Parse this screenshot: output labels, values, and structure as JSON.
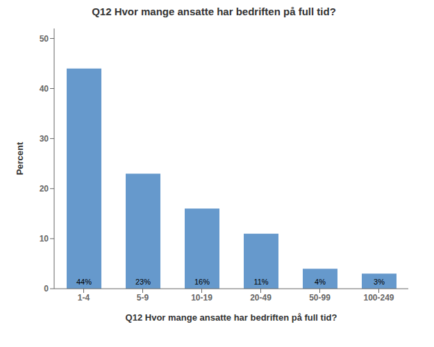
{
  "chart_data": {
    "type": "bar",
    "title": "Q12 Hvor mange ansatte har bedriften på full tid?",
    "xlabel": "Q12 Hvor mange ansatte har bedriften på full tid?",
    "ylabel": "Percent",
    "categories": [
      "1-4",
      "5-9",
      "10-19",
      "20-49",
      "50-99",
      "100-249"
    ],
    "values": [
      44,
      23,
      16,
      11,
      4,
      3
    ],
    "value_labels": [
      "44%",
      "23%",
      "16%",
      "11%",
      "4%",
      "3%"
    ],
    "data_labels": true,
    "color": "#6699CC",
    "ylim": [
      0,
      52
    ],
    "yticks": [
      0,
      10,
      20,
      30,
      40,
      50
    ],
    "grid": false
  }
}
